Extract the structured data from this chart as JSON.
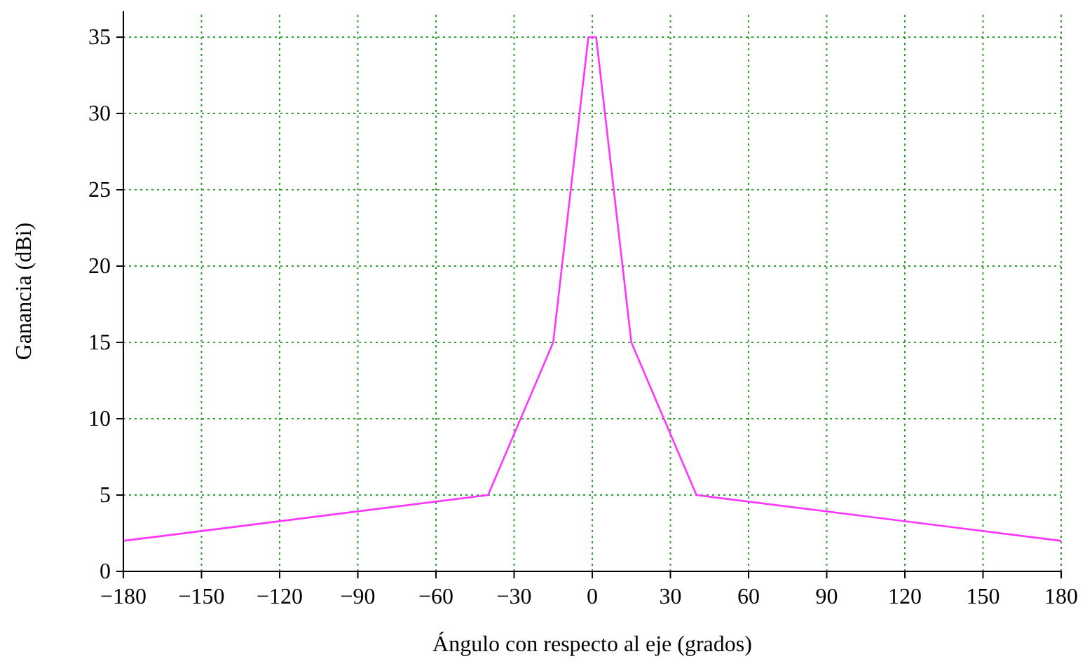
{
  "chart_data": {
    "type": "line",
    "xlabel": "Ángulo con respecto al eje (grados)",
    "ylabel": "Ganancia (dBi)",
    "x": [
      -180,
      -40,
      -15,
      -1.5,
      1.5,
      15,
      40,
      180
    ],
    "series": [
      {
        "color": "#ff33ff",
        "values": [
          2,
          5,
          15,
          35,
          35,
          15,
          5,
          2
        ]
      }
    ],
    "xlim": [
      -180,
      180
    ],
    "xticks": [
      {
        "value": -180,
        "label": "−180"
      },
      {
        "value": -150,
        "label": "−150"
      },
      {
        "value": -120,
        "label": "−120"
      },
      {
        "value": -90,
        "label": "−90"
      },
      {
        "value": -60,
        "label": "−60"
      },
      {
        "value": -30,
        "label": "−30"
      },
      0,
      30,
      60,
      90,
      120,
      150,
      180
    ],
    "ylim": [
      0,
      36.7
    ],
    "yticks": [
      0,
      5,
      10,
      15,
      20,
      25,
      30,
      35
    ],
    "grid": true,
    "marker": "none",
    "line_style": "solid"
  }
}
